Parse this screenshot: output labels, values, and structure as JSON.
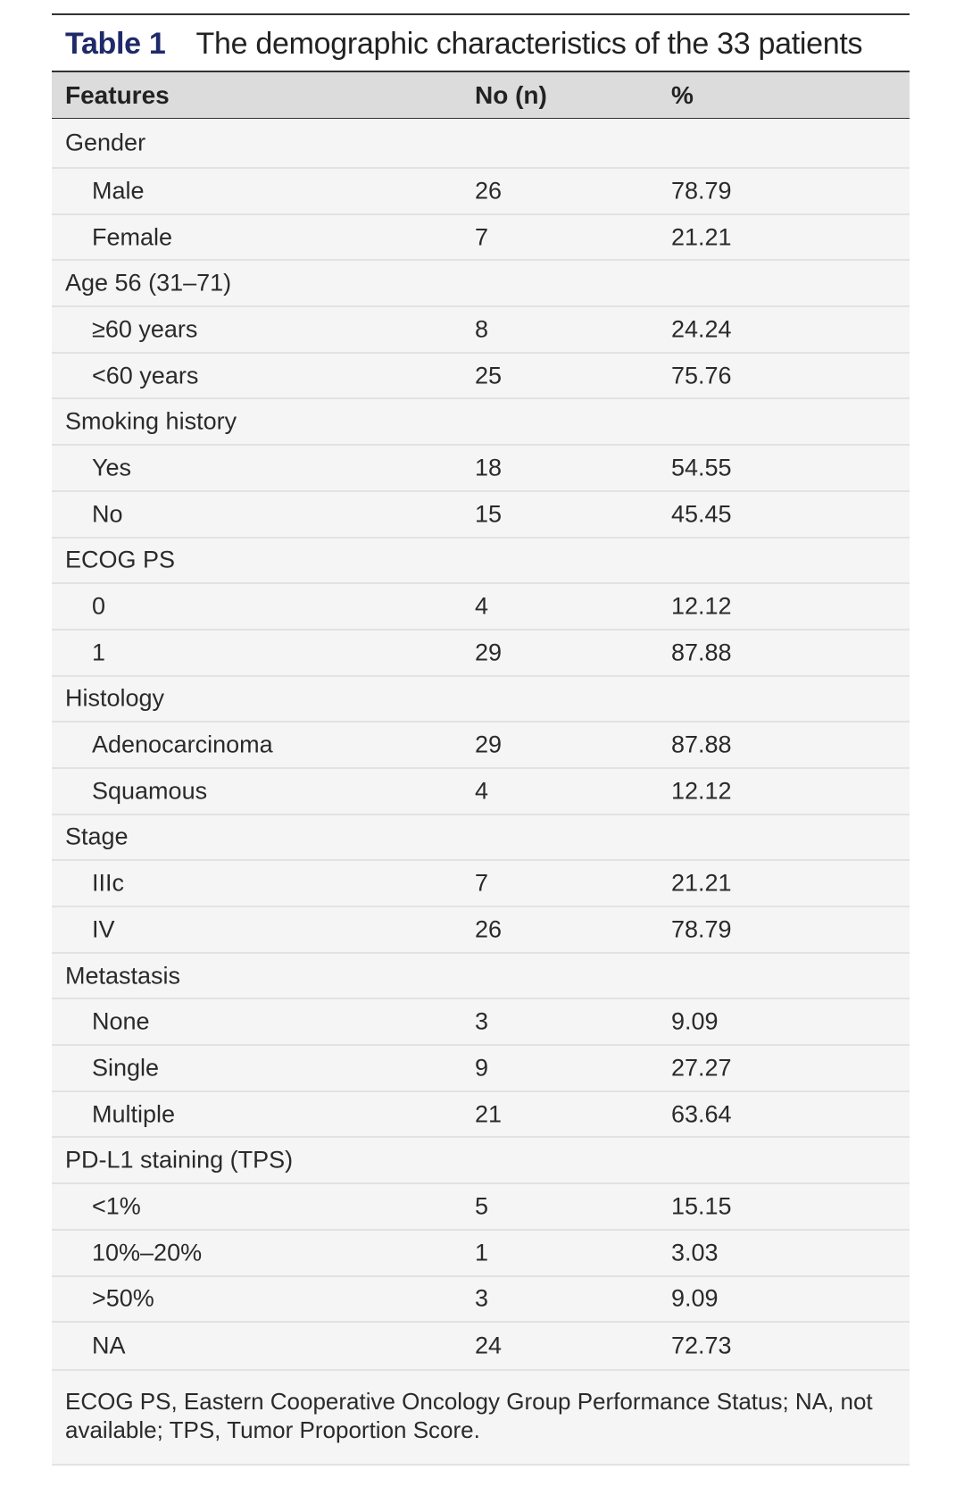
{
  "table": {
    "label": "Table 1",
    "title": "The demographic characteristics of the 33 patients",
    "headers": [
      "Features",
      "No (n)",
      "%"
    ],
    "rows": [
      {
        "feature": "Gender",
        "group": true
      },
      {
        "feature": "Male",
        "n": "26",
        "pct": "78.79"
      },
      {
        "feature": "Female",
        "n": "7",
        "pct": "21.21"
      },
      {
        "feature": "Age 56 (31–71)",
        "group": true
      },
      {
        "feature": "≥60 years",
        "n": "8",
        "pct": "24.24"
      },
      {
        "feature": "<60 years",
        "n": "25",
        "pct": "75.76"
      },
      {
        "feature": "Smoking history",
        "group": true
      },
      {
        "feature": "Yes",
        "n": "18",
        "pct": "54.55"
      },
      {
        "feature": "No",
        "n": "15",
        "pct": "45.45"
      },
      {
        "feature": "ECOG PS",
        "group": true
      },
      {
        "feature": "0",
        "n": "4",
        "pct": "12.12"
      },
      {
        "feature": "1",
        "n": "29",
        "pct": "87.88"
      },
      {
        "feature": "Histology",
        "group": true
      },
      {
        "feature": "Adenocarcinoma",
        "n": "29",
        "pct": "87.88"
      },
      {
        "feature": "Squamous",
        "n": "4",
        "pct": "12.12"
      },
      {
        "feature": "Stage",
        "group": true
      },
      {
        "feature": "IIIc",
        "n": "7",
        "pct": "21.21"
      },
      {
        "feature": "IV",
        "n": "26",
        "pct": "78.79"
      },
      {
        "feature": "Metastasis",
        "group": true
      },
      {
        "feature": "None",
        "n": "3",
        "pct": "9.09"
      },
      {
        "feature": "Single",
        "n": "9",
        "pct": "27.27"
      },
      {
        "feature": "Multiple",
        "n": "21",
        "pct": "63.64"
      },
      {
        "feature": "PD-L1 staining (TPS)",
        "group": true
      },
      {
        "feature": "<1%",
        "n": "5",
        "pct": "15.15"
      },
      {
        "feature": "10%–20%",
        "n": "1",
        "pct": "3.03"
      },
      {
        "feature": ">50%",
        "n": "3",
        "pct": "9.09"
      },
      {
        "feature": "NA",
        "n": "24",
        "pct": "72.73"
      }
    ],
    "footnote": "ECOG PS, Eastern Cooperative Oncology Group Performance Status; NA, not available; TPS, Tumor Proportion Score."
  },
  "colors": {
    "label": "#1f2a6b",
    "header_bg": "#dcdcdc",
    "body_bg": "#f5f5f5"
  }
}
